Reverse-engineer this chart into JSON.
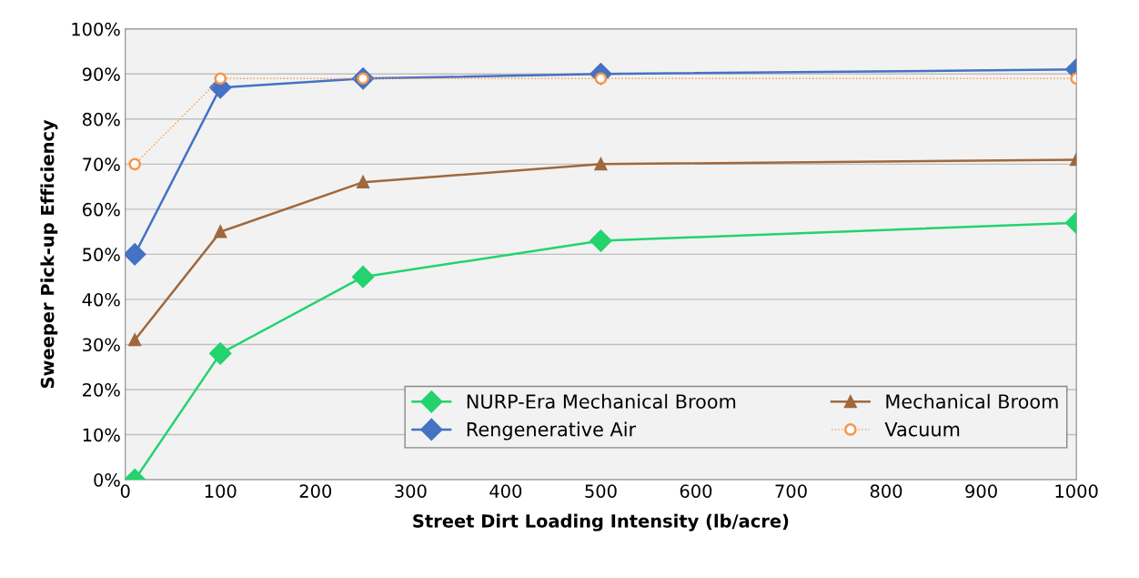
{
  "chart_data": {
    "type": "line",
    "xlabel": "Street Dirt Loading Intensity (lb/acre)",
    "ylabel": "Sweeper Pick-up Efficiency",
    "x": [
      10,
      100,
      250,
      500,
      1000
    ],
    "series": [
      {
        "name": "NURP-Era Mechanical Broom",
        "color": "#22d36e",
        "marker": "diamond",
        "line_style": "solid",
        "values": [
          0,
          28,
          45,
          53,
          57
        ]
      },
      {
        "name": "Mechanical Broom",
        "color": "#a0683c",
        "marker": "triangle",
        "line_style": "solid",
        "values": [
          31,
          55,
          66,
          70,
          71
        ]
      },
      {
        "name": "Rengenerative Air",
        "color": "#4472c4",
        "marker": "diamond",
        "line_style": "solid",
        "values": [
          50,
          87,
          89,
          90,
          91
        ]
      },
      {
        "name": "Vacuum",
        "color": "#f79646",
        "marker": "circle",
        "line_style": "dotted",
        "values": [
          70,
          89,
          89,
          89,
          89
        ]
      }
    ],
    "xlim": [
      0,
      1000
    ],
    "xticks": [
      0,
      100,
      200,
      300,
      400,
      500,
      600,
      700,
      800,
      900,
      1000
    ],
    "ylim": [
      0,
      100
    ],
    "yticks": [
      {
        "value": 0,
        "label": "0%"
      },
      {
        "value": 10,
        "label": "10%"
      },
      {
        "value": 20,
        "label": "20%"
      },
      {
        "value": 30,
        "label": "30%"
      },
      {
        "value": 40,
        "label": "40%"
      },
      {
        "value": 50,
        "label": "50%"
      },
      {
        "value": 60,
        "label": "60%"
      },
      {
        "value": 70,
        "label": "70%"
      },
      {
        "value": 80,
        "label": "80%"
      },
      {
        "value": 90,
        "label": "90%"
      },
      {
        "value": 100,
        "label": "100%"
      }
    ],
    "grid": "y",
    "legend": "bottom right"
  }
}
